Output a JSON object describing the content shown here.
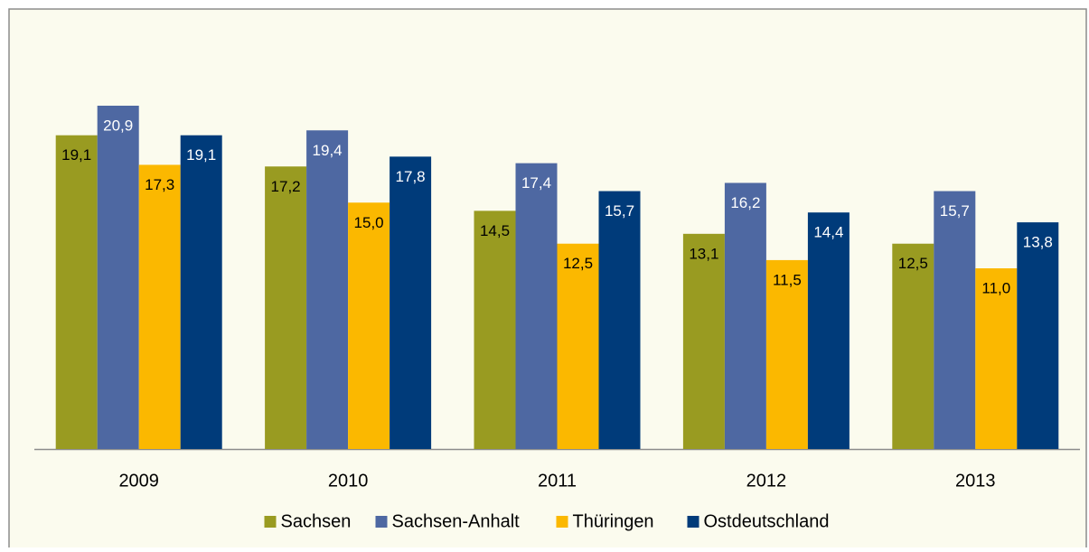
{
  "chart_data": {
    "type": "bar",
    "categories": [
      "2009",
      "2010",
      "2011",
      "2012",
      "2013"
    ],
    "series": [
      {
        "name": "Sachsen",
        "color": "#999b21",
        "values": [
          19.1,
          17.2,
          14.5,
          13.1,
          12.5
        ],
        "value_labels": [
          "19,1",
          "17,2",
          "14,5",
          "13,1",
          "12,5"
        ]
      },
      {
        "name": "Sachsen-Anhalt",
        "color": "#4e68a2",
        "values": [
          20.9,
          19.4,
          17.4,
          16.2,
          15.7
        ],
        "value_labels": [
          "20,9",
          "19,4",
          "17,4",
          "16,2",
          "15,7"
        ]
      },
      {
        "name": "Thüringen",
        "color": "#fbb800",
        "values": [
          17.3,
          15.0,
          12.5,
          11.5,
          11.0
        ],
        "value_labels": [
          "17,3",
          "15,0",
          "12,5",
          "11,5",
          "11,0"
        ]
      },
      {
        "name": "Ostdeutschland",
        "color": "#003b7a",
        "values": [
          19.1,
          17.8,
          15.7,
          14.4,
          13.8
        ],
        "value_labels": [
          "19,1",
          "17,8",
          "15,7",
          "14,4",
          "13,8"
        ]
      }
    ],
    "ylim": [
      0,
      22
    ],
    "legend": "bottom"
  }
}
